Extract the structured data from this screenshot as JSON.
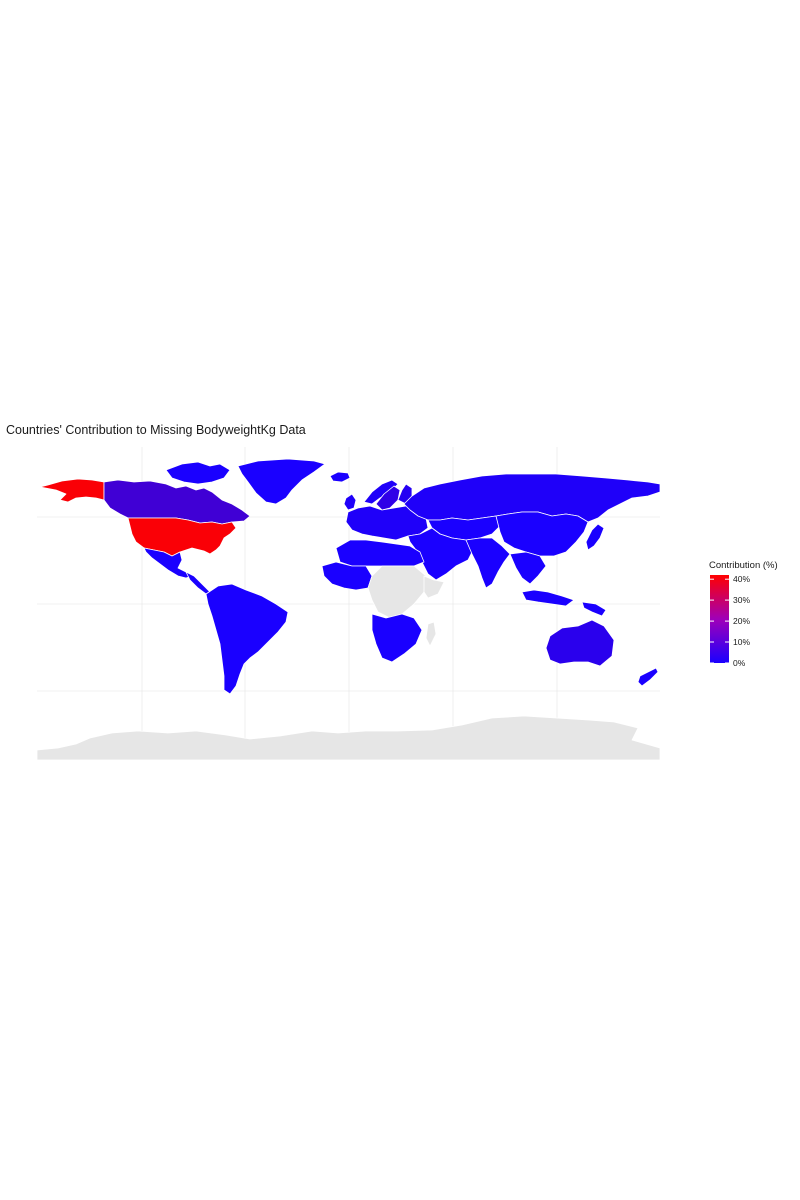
{
  "title": "Countries' Contribution to Missing BodyweightKg Data",
  "colors": {
    "scale_low": "#1a00ff",
    "scale_high": "#ff0000",
    "no_data": "#e6e6e6",
    "border": "#ffffff",
    "grid": "#ebebeb"
  },
  "legend": {
    "title": "Contribution (%)",
    "range": [
      0,
      42
    ],
    "ticks": [
      {
        "value": 40,
        "label": "40%"
      },
      {
        "value": 30,
        "label": "30%"
      },
      {
        "value": 20,
        "label": "20%"
      },
      {
        "value": 10,
        "label": "10%"
      },
      {
        "value": 0,
        "label": "0%"
      }
    ]
  },
  "map": {
    "type": "choropleth",
    "projection": "equirectangular",
    "regions": [
      {
        "id": "usa",
        "name": "United States",
        "value": 41
      },
      {
        "id": "alaska",
        "name": "Alaska",
        "value": 41
      },
      {
        "id": "canada",
        "name": "Canada",
        "value": 7
      },
      {
        "id": "australia",
        "name": "Australia",
        "value": 3
      },
      {
        "id": "russia",
        "name": "Russia",
        "value": 1
      },
      {
        "id": "sweden",
        "name": "Sweden",
        "value": 4
      },
      {
        "id": "finland",
        "name": "Finland",
        "value": 2
      },
      {
        "id": "norway",
        "name": "Norway",
        "value": 1
      },
      {
        "id": "uk",
        "name": "United Kingdom",
        "value": 1
      },
      {
        "id": "europe",
        "name": "Europe",
        "value": 1
      },
      {
        "id": "greenland",
        "name": "Greenland",
        "value": 0
      },
      {
        "id": "mexico",
        "name": "Mexico",
        "value": 0
      },
      {
        "id": "central-america",
        "name": "Central America",
        "value": 0
      },
      {
        "id": "south-america",
        "name": "South America",
        "value": 0
      },
      {
        "id": "africa-north",
        "name": "North Africa",
        "value": 0
      },
      {
        "id": "africa-west",
        "name": "West Africa",
        "value": 0
      },
      {
        "id": "africa-south",
        "name": "Southern Africa",
        "value": 0
      },
      {
        "id": "africa-central",
        "name": "Central Africa",
        "value": null
      },
      {
        "id": "horn-of-africa",
        "name": "Horn of Africa",
        "value": null
      },
      {
        "id": "madagascar",
        "name": "Madagascar",
        "value": null
      },
      {
        "id": "middle-east",
        "name": "Middle East",
        "value": 0
      },
      {
        "id": "central-asia",
        "name": "Central Asia",
        "value": 0
      },
      {
        "id": "south-asia",
        "name": "South Asia",
        "value": 0
      },
      {
        "id": "china",
        "name": "China",
        "value": 0
      },
      {
        "id": "japan",
        "name": "Japan",
        "value": 0
      },
      {
        "id": "southeast-asia",
        "name": "Southeast Asia",
        "value": 0
      },
      {
        "id": "indonesia",
        "name": "Indonesia",
        "value": 0
      },
      {
        "id": "new-guinea",
        "name": "New Guinea",
        "value": 0
      },
      {
        "id": "new-zealand",
        "name": "New Zealand",
        "value": 0
      },
      {
        "id": "iceland",
        "name": "Iceland",
        "value": 0
      },
      {
        "id": "arctic-islands",
        "name": "Arctic Islands",
        "value": 0
      },
      {
        "id": "antarctica",
        "name": "Antarctica",
        "value": null
      }
    ]
  }
}
